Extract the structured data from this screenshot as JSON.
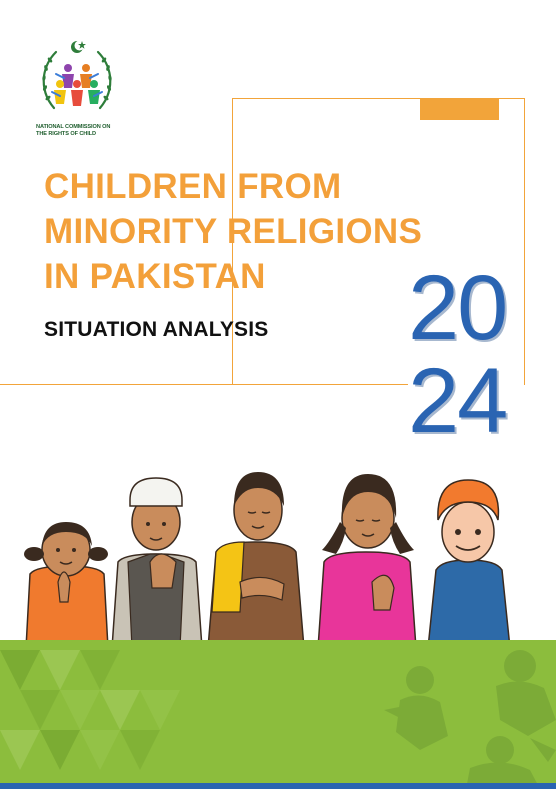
{
  "logo": {
    "icon": "ncrc-emblem-icon",
    "caption_line1": "NATIONAL COMMISSION ON",
    "caption_line2": "THE RIGHTS OF CHILD"
  },
  "title": {
    "line1": "CHILDREN FROM",
    "line2": "MINORITY RELIGIONS",
    "line3": "IN PAKISTAN"
  },
  "subtitle": "SITUATION ANALYSIS",
  "year": {
    "top": "20",
    "bottom": "24"
  },
  "colors": {
    "title": "#f3a03a",
    "frame": "#f2a43a",
    "year": "#2a64b2",
    "footer": "#8cbd3d"
  }
}
